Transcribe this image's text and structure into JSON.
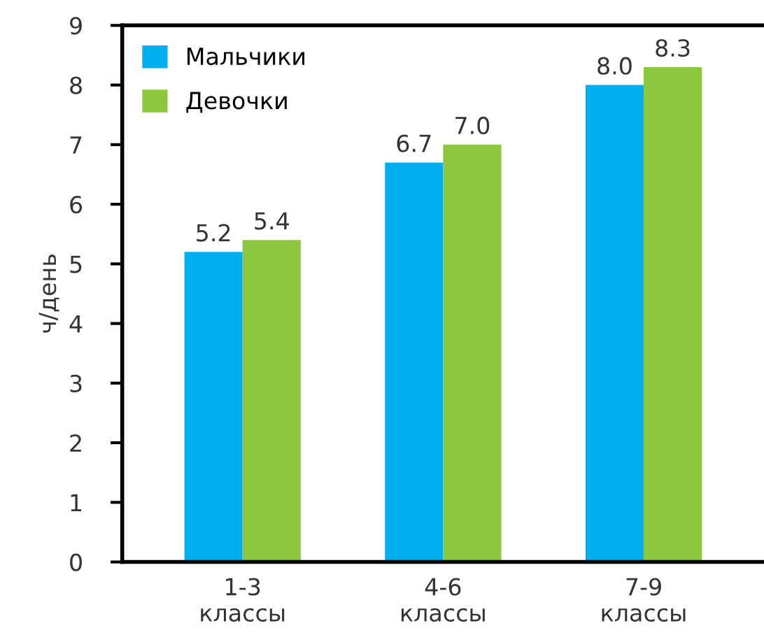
{
  "chart_data": {
    "type": "bar",
    "ylabel": "ч/день",
    "categories": [
      "1-3\nклассы",
      "4-6\nклассы",
      "7-9\nклассы"
    ],
    "series": [
      {
        "name": "Мальчики",
        "color": "#00aeef",
        "values": [
          5.2,
          6.7,
          8.0
        ],
        "value_labels": [
          "5.2",
          "6.7",
          "8.0"
        ]
      },
      {
        "name": "Девочки",
        "color": "#8dc63f",
        "values": [
          5.4,
          7.0,
          8.3
        ],
        "value_labels": [
          "5.4",
          "7.0",
          "8.3"
        ]
      }
    ],
    "ylim": [
      0,
      9
    ],
    "yticks": [
      0,
      1,
      2,
      3,
      4,
      5,
      6,
      7,
      8,
      9
    ],
    "legend": "top left",
    "grid": false
  }
}
